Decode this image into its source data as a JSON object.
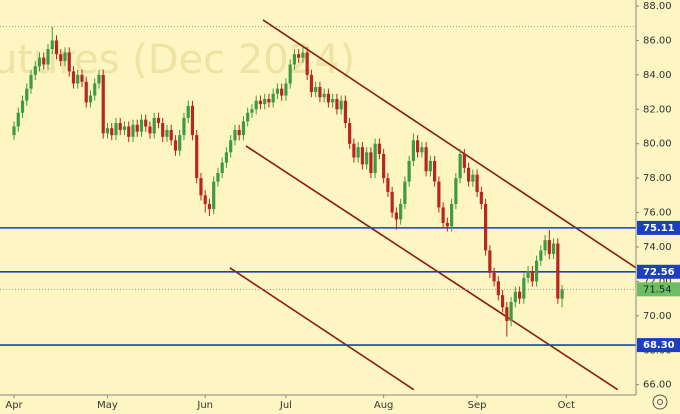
{
  "chart_data": {
    "type": "candlestick",
    "watermark": "utures (Dec 2024)",
    "up_color": "#3f9b3f",
    "down_color": "#b8261f",
    "grid": false,
    "xlim": [
      -3.3,
      146.4
    ],
    "ylim": [
      65.4,
      88.35
    ],
    "xticks": [
      {
        "value": 0,
        "label": "Apr"
      },
      {
        "value": 22,
        "label": "May"
      },
      {
        "value": 45,
        "label": "Jun"
      },
      {
        "value": 64,
        "label": "Jul"
      },
      {
        "value": 87,
        "label": "Aug"
      },
      {
        "value": 109,
        "label": "Sep"
      },
      {
        "value": 130,
        "label": "Oct"
      }
    ],
    "yticks": [
      {
        "value": 66,
        "label": "66.00"
      },
      {
        "value": 68,
        "label": "68.00"
      },
      {
        "value": 70,
        "label": "70.00"
      },
      {
        "value": 72,
        "label": "72.00"
      },
      {
        "value": 74,
        "label": "74.00"
      },
      {
        "value": 76,
        "label": "76.00"
      },
      {
        "value": 78,
        "label": "78.00"
      },
      {
        "value": 80,
        "label": "80.00"
      },
      {
        "value": 82,
        "label": "82.00"
      },
      {
        "value": 84,
        "label": "84.00"
      },
      {
        "value": 86,
        "label": "86.00"
      },
      {
        "value": 88,
        "label": "88.00"
      }
    ],
    "open": [
      80.5,
      81.0,
      81.8,
      82.5,
      83.2,
      84.0,
      84.5,
      85.0,
      84.6,
      85.5,
      86.0,
      85.2,
      84.8,
      85.3,
      84.2,
      83.5,
      84.0,
      83.6,
      82.4,
      82.8,
      83.5,
      84.0,
      80.6,
      80.9,
      80.5,
      81.2,
      80.8,
      81.0,
      80.4,
      81.1,
      80.7,
      81.4,
      81.0,
      80.6,
      81.5,
      81.2,
      80.4,
      80.8,
      80.2,
      79.6,
      80.5,
      81.5,
      82.2,
      80.5,
      78.0,
      77.0,
      76.5,
      76.2,
      77.8,
      78.3,
      78.9,
      79.5,
      80.2,
      80.8,
      80.5,
      81.3,
      81.8,
      82.0,
      82.5,
      82.3,
      82.6,
      82.4,
      82.9,
      83.2,
      82.8,
      83.5,
      84.6,
      85.2,
      85.0,
      85.3,
      84.0,
      83.0,
      83.3,
      82.7,
      82.9,
      82.4,
      82.6,
      82.0,
      82.5,
      81.2,
      80.0,
      79.2,
      79.8,
      78.8,
      79.5,
      78.3,
      80.0,
      79.4,
      78.0,
      77.2,
      76.0,
      75.6,
      76.5,
      77.8,
      79.0,
      80.2,
      79.5,
      79.8,
      78.4,
      79.0,
      77.8,
      76.3,
      75.4,
      75.2,
      76.5,
      78.0,
      79.4,
      78.6,
      77.8,
      78.2,
      77.2,
      76.5,
      73.8,
      72.5,
      72.0,
      71.2,
      70.5,
      69.7,
      70.8,
      71.4,
      71.0,
      72.2,
      72.6,
      72.0,
      73.2,
      73.8,
      74.4,
      73.6,
      74.2,
      71.0
    ],
    "high": [
      81.3,
      82.1,
      82.8,
      83.5,
      84.3,
      84.8,
      85.3,
      85.3,
      85.8,
      86.8,
      86.3,
      85.5,
      85.6,
      85.6,
      84.5,
      84.3,
      84.3,
      83.9,
      83.1,
      83.8,
      84.3,
      84.3,
      81.2,
      81.2,
      81.5,
      81.5,
      81.3,
      81.3,
      81.4,
      81.4,
      81.7,
      81.7,
      81.3,
      81.8,
      81.8,
      81.5,
      81.1,
      81.1,
      80.5,
      80.8,
      81.8,
      82.5,
      82.5,
      80.8,
      78.3,
      77.3,
      76.8,
      78.1,
      78.6,
      79.2,
      79.8,
      80.5,
      81.1,
      81.1,
      81.6,
      82.1,
      82.3,
      82.8,
      82.8,
      82.9,
      82.9,
      83.2,
      83.5,
      83.5,
      83.8,
      84.9,
      85.5,
      85.5,
      85.6,
      85.6,
      84.3,
      83.6,
      83.6,
      83.2,
      83.2,
      82.9,
      82.9,
      82.8,
      82.8,
      81.5,
      80.3,
      80.1,
      80.1,
      79.8,
      79.8,
      80.3,
      80.3,
      79.7,
      78.3,
      77.5,
      76.3,
      76.8,
      78.1,
      79.3,
      80.6,
      80.5,
      80.1,
      80.1,
      79.3,
      79.3,
      78.1,
      76.6,
      75.7,
      76.8,
      78.3,
      79.7,
      79.7,
      78.9,
      78.5,
      78.5,
      77.5,
      76.8,
      74.1,
      72.8,
      72.3,
      71.5,
      70.8,
      71.1,
      71.7,
      71.7,
      72.5,
      72.9,
      72.9,
      73.5,
      74.1,
      74.7,
      75.0,
      74.5,
      74.5,
      71.8
    ],
    "low": [
      80.2,
      80.7,
      81.5,
      82.2,
      82.9,
      83.7,
      84.2,
      84.3,
      84.3,
      85.2,
      84.9,
      84.5,
      84.5,
      83.9,
      83.2,
      83.2,
      83.3,
      82.1,
      82.1,
      82.5,
      83.2,
      80.3,
      80.3,
      80.2,
      80.2,
      80.5,
      80.5,
      80.1,
      80.1,
      80.4,
      80.4,
      80.7,
      80.3,
      80.3,
      80.9,
      80.1,
      80.1,
      79.9,
      79.3,
      79.3,
      80.2,
      81.2,
      80.2,
      77.7,
      76.7,
      76.0,
      75.8,
      75.9,
      77.5,
      78.0,
      78.6,
      79.2,
      79.9,
      80.2,
      80.2,
      81.0,
      81.5,
      81.7,
      82.0,
      82.0,
      82.1,
      82.1,
      82.6,
      82.5,
      82.5,
      83.2,
      84.3,
      84.7,
      84.7,
      83.7,
      82.7,
      82.7,
      82.4,
      82.4,
      82.1,
      82.1,
      81.7,
      81.7,
      80.9,
      79.7,
      78.9,
      78.9,
      78.5,
      78.5,
      78.0,
      78.0,
      79.1,
      77.7,
      76.9,
      75.7,
      75.0,
      75.3,
      76.2,
      77.5,
      78.7,
      79.2,
      79.2,
      78.1,
      78.1,
      77.5,
      76.0,
      75.1,
      74.9,
      74.9,
      76.2,
      77.7,
      78.3,
      77.5,
      77.5,
      76.9,
      76.2,
      73.5,
      72.2,
      71.7,
      70.9,
      70.2,
      68.8,
      69.4,
      70.5,
      70.7,
      70.7,
      71.9,
      71.7,
      71.7,
      72.9,
      73.5,
      73.3,
      73.3,
      70.7,
      70.5
    ],
    "close": [
      81.0,
      81.8,
      82.5,
      83.2,
      84.0,
      84.5,
      85.0,
      84.6,
      85.5,
      86.0,
      85.2,
      84.8,
      85.3,
      84.2,
      83.5,
      84.0,
      83.6,
      82.4,
      82.8,
      83.5,
      84.0,
      80.6,
      80.9,
      80.5,
      81.2,
      80.8,
      81.0,
      80.4,
      81.1,
      80.7,
      81.4,
      81.0,
      80.6,
      81.5,
      81.2,
      80.4,
      80.8,
      80.2,
      79.6,
      80.5,
      81.5,
      82.2,
      80.5,
      78.0,
      77.0,
      76.5,
      76.2,
      77.8,
      78.3,
      78.9,
      79.5,
      80.2,
      80.8,
      80.5,
      81.3,
      81.8,
      82.0,
      82.5,
      82.3,
      82.6,
      82.4,
      82.9,
      83.2,
      82.8,
      83.5,
      84.6,
      85.2,
      85.0,
      85.3,
      84.0,
      83.0,
      83.3,
      82.7,
      82.9,
      82.4,
      82.6,
      82.0,
      82.5,
      81.2,
      80.0,
      79.2,
      79.8,
      78.8,
      79.5,
      78.3,
      80.0,
      79.4,
      78.0,
      77.2,
      76.0,
      75.6,
      76.5,
      77.8,
      79.0,
      80.2,
      79.5,
      79.8,
      78.4,
      79.0,
      77.8,
      76.3,
      75.4,
      75.2,
      76.5,
      78.0,
      79.4,
      78.6,
      77.8,
      78.2,
      77.2,
      76.5,
      73.8,
      72.5,
      72.0,
      71.2,
      70.5,
      69.7,
      70.8,
      71.4,
      71.0,
      72.2,
      72.6,
      72.0,
      73.2,
      73.8,
      74.4,
      73.6,
      74.2,
      71.0,
      71.54
    ],
    "levels": [
      {
        "value": 75.11,
        "label": "75.11",
        "color": "#1b3fc0"
      },
      {
        "value": 72.56,
        "label": "72.56",
        "color": "#1b3fc0"
      },
      {
        "value": 68.3,
        "label": "68.30",
        "color": "#1b3fc0"
      }
    ],
    "last_price": {
      "value": 71.54,
      "label": "71.54",
      "color": "#6dbd62"
    },
    "reference_line": 86.8,
    "trendlines": [
      {
        "x": [
          58.6,
          146.4
        ],
        "y": [
          87.19,
          72.79
        ],
        "color": "#8b1a12"
      },
      {
        "x": [
          54.6,
          142.1
        ],
        "y": [
          79.87,
          65.71
        ],
        "color": "#8b1a12"
      },
      {
        "x": [
          50.8,
          94.1
        ],
        "y": [
          72.79,
          65.71
        ],
        "color": "#8b1a12"
      }
    ]
  }
}
